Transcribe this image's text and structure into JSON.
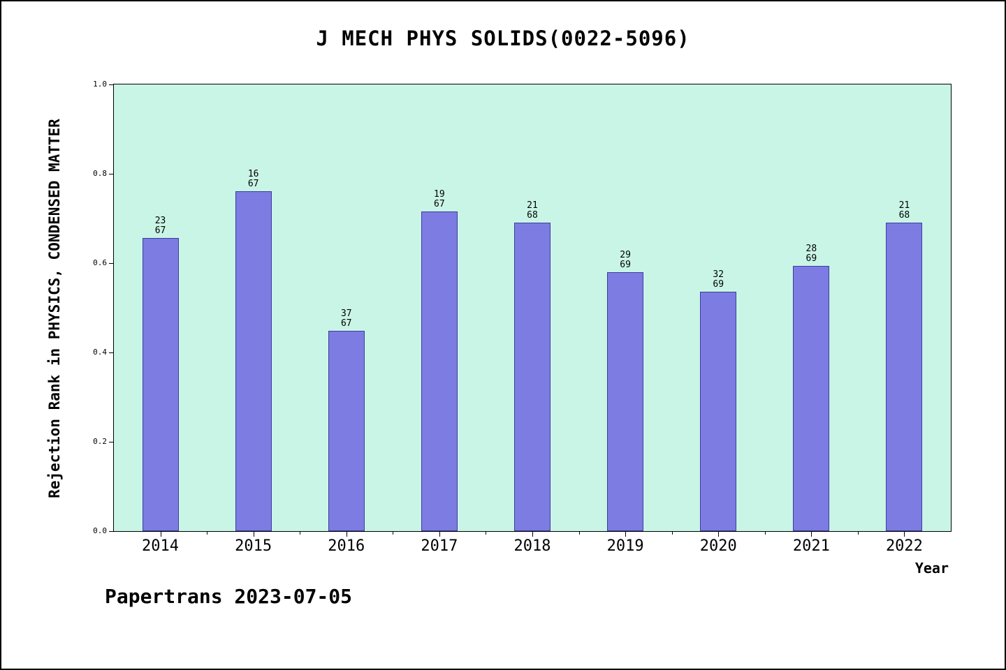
{
  "chart_data": {
    "type": "bar",
    "title": "J MECH PHYS SOLIDS(0022-5096)",
    "xlabel": "Year",
    "ylabel": "Rejection Rank in PHYSICS, CONDENSED MATTER",
    "categories": [
      "2014",
      "2015",
      "2016",
      "2017",
      "2018",
      "2019",
      "2020",
      "2021",
      "2022"
    ],
    "series": [
      {
        "name": "rejection-rank",
        "values": [
          0.657,
          0.761,
          0.448,
          0.716,
          0.691,
          0.58,
          0.536,
          0.594,
          0.691
        ]
      }
    ],
    "bar_labels": [
      [
        "23",
        "67"
      ],
      [
        "16",
        "67"
      ],
      [
        "37",
        "67"
      ],
      [
        "19",
        "67"
      ],
      [
        "21",
        "68"
      ],
      [
        "29",
        "69"
      ],
      [
        "32",
        "69"
      ],
      [
        "28",
        "69"
      ],
      [
        "21",
        "68"
      ]
    ],
    "ylim": [
      0,
      1
    ],
    "ytick_values": [
      0,
      0.2,
      0.4,
      0.6,
      0.8,
      1.0
    ],
    "ytick_labels": [
      "0.0",
      "0.2",
      "0.4",
      "0.6",
      "0.8",
      "1.0"
    ],
    "grid": false,
    "legend": "none",
    "annotations": {
      "footer": "Papertrans 2023-07-05"
    },
    "colors": {
      "bar": "#7d7ce3",
      "bar_edge": "#3d3d9c",
      "plot_bg": "#c9f5e6",
      "page_bg": "#ffffff",
      "text": "#000000"
    }
  }
}
